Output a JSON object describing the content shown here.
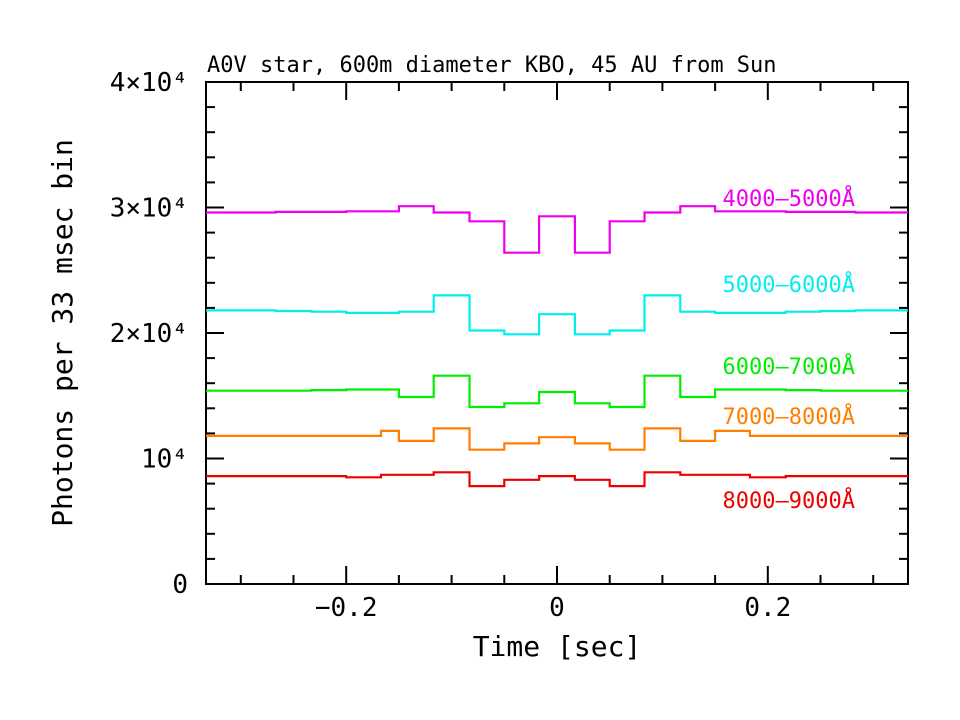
{
  "chart_data": {
    "type": "line",
    "title": "A0V star, 600m diameter KBO, 45 AU from Sun",
    "xlabel": "Time [sec]",
    "ylabel": "Photons per 33 msec bin",
    "xlim": [
      -0.333,
      0.333
    ],
    "ylim": [
      0,
      40000
    ],
    "x_ticks": [
      {
        "value": -0.2,
        "label": "−0.2"
      },
      {
        "value": 0,
        "label": "0"
      },
      {
        "value": 0.2,
        "label": "0.2"
      }
    ],
    "y_ticks": [
      {
        "value": 0,
        "label": "0"
      },
      {
        "value": 10000,
        "label": "10⁴"
      },
      {
        "value": 20000,
        "label": "2×10⁴"
      },
      {
        "value": 30000,
        "label": "3×10⁴"
      },
      {
        "value": 40000,
        "label": "4×10⁴"
      }
    ],
    "grid": false,
    "legend": "inline labels right of curves",
    "bin_edges": [
      -0.333,
      -0.3,
      -0.267,
      -0.233,
      -0.2,
      -0.167,
      -0.15,
      -0.117,
      -0.083,
      -0.05,
      -0.017,
      0.017,
      0.05,
      0.083,
      0.117,
      0.15,
      0.183,
      0.217,
      0.25,
      0.283,
      0.333
    ],
    "series": [
      {
        "name": "4000–5000Å",
        "color": "#ee00ee",
        "values": [
          29600,
          29600,
          29650,
          29650,
          29700,
          29700,
          30100,
          29600,
          28900,
          26400,
          29300,
          26400,
          28900,
          29600,
          30100,
          29700,
          29700,
          29650,
          29650,
          29600
        ]
      },
      {
        "name": "5000–6000Å",
        "color": "#00eeee",
        "values": [
          21800,
          21800,
          21750,
          21700,
          21600,
          21600,
          21700,
          23000,
          20200,
          19900,
          21500,
          19900,
          20200,
          23000,
          21700,
          21600,
          21600,
          21700,
          21750,
          21800
        ]
      },
      {
        "name": "6000–7000Å",
        "color": "#00ee00",
        "values": [
          15400,
          15400,
          15400,
          15450,
          15500,
          15500,
          14900,
          16600,
          14100,
          14400,
          15300,
          14400,
          14100,
          16600,
          14900,
          15500,
          15500,
          15450,
          15400,
          15400
        ]
      },
      {
        "name": "7000–8000Å",
        "color": "#ff7f00",
        "values": [
          11800,
          11800,
          11800,
          11800,
          11800,
          12200,
          11400,
          12400,
          10700,
          11200,
          11700,
          11200,
          10700,
          12400,
          11400,
          12200,
          11800,
          11800,
          11800,
          11800
        ]
      },
      {
        "name": "8000–9000Å",
        "color": "#ee0000",
        "values": [
          8600,
          8600,
          8600,
          8600,
          8500,
          8700,
          8700,
          8900,
          7800,
          8300,
          8600,
          8300,
          7800,
          8900,
          8700,
          8700,
          8500,
          8600,
          8600,
          8600
        ]
      }
    ]
  }
}
